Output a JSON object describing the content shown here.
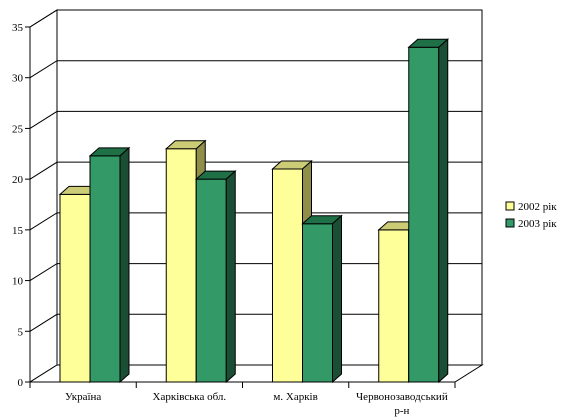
{
  "chart_data": {
    "type": "bar",
    "title": "",
    "xlabel": "",
    "ylabel": "",
    "ylim": [
      0,
      35
    ],
    "yticks": [
      0,
      5,
      10,
      15,
      20,
      25,
      30,
      35
    ],
    "grid": true,
    "legend_position": "right",
    "categories": [
      [
        "Україна"
      ],
      [
        "Харківська обл."
      ],
      [
        "м. Харків"
      ],
      [
        "Червонозаводський",
        "р-н"
      ]
    ],
    "series": [
      {
        "name": "2002 рік",
        "values": [
          18.5,
          23.0,
          21.0,
          15.0
        ]
      },
      {
        "name": "2003 рік",
        "values": [
          22.3,
          20.0,
          15.6,
          33.0
        ]
      }
    ],
    "colors": {
      "series": [
        {
          "front": "#ffff99",
          "top": "#cccc77",
          "side": "#8f8f4a"
        },
        {
          "front": "#339966",
          "top": "#1f6f47",
          "side": "#1a4f35"
        }
      ],
      "grid": "#000000",
      "wall": "#ffffff"
    }
  }
}
